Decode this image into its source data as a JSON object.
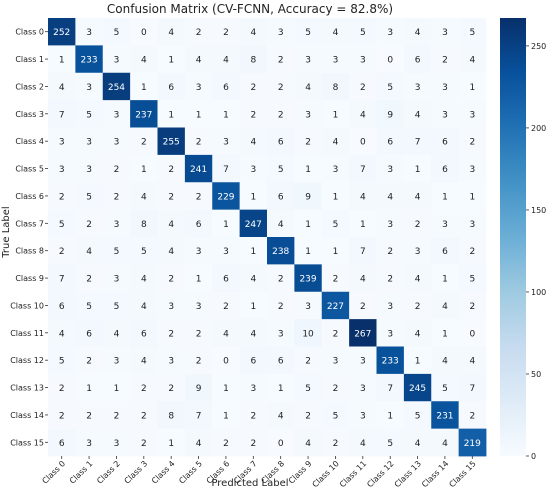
{
  "chart_data": {
    "type": "heatmap",
    "title": "Confusion Matrix (CV-FCNN, Accuracy = 82.8%)",
    "xlabel": "Predicted Label",
    "ylabel": "True Label",
    "x_categories": [
      "Class 0",
      "Class 1",
      "Class 2",
      "Class 3",
      "Class 4",
      "Class 5",
      "Class 6",
      "Class 7",
      "Class 8",
      "Class 9",
      "Class 10",
      "Class 11",
      "Class 12",
      "Class 13",
      "Class 14",
      "Class 15"
    ],
    "y_categories": [
      "Class 0",
      "Class 1",
      "Class 2",
      "Class 3",
      "Class 4",
      "Class 5",
      "Class 6",
      "Class 7",
      "Class 8",
      "Class 9",
      "Class 10",
      "Class 11",
      "Class 12",
      "Class 13",
      "Class 14",
      "Class 15"
    ],
    "values": [
      [
        252,
        3,
        5,
        0,
        4,
        2,
        2,
        4,
        3,
        5,
        4,
        5,
        3,
        4,
        3,
        5
      ],
      [
        1,
        233,
        3,
        4,
        1,
        4,
        4,
        8,
        2,
        3,
        3,
        3,
        0,
        6,
        2,
        4
      ],
      [
        4,
        3,
        254,
        1,
        6,
        3,
        6,
        2,
        2,
        4,
        8,
        2,
        5,
        3,
        3,
        1
      ],
      [
        7,
        5,
        3,
        237,
        1,
        1,
        1,
        2,
        2,
        3,
        1,
        4,
        9,
        4,
        3,
        3
      ],
      [
        3,
        3,
        3,
        2,
        255,
        2,
        3,
        4,
        6,
        2,
        4,
        0,
        6,
        7,
        6,
        2
      ],
      [
        3,
        3,
        2,
        1,
        2,
        241,
        7,
        3,
        5,
        1,
        3,
        7,
        3,
        1,
        6,
        3
      ],
      [
        2,
        5,
        2,
        4,
        2,
        2,
        229,
        1,
        6,
        9,
        1,
        4,
        4,
        4,
        1,
        1
      ],
      [
        5,
        2,
        3,
        8,
        4,
        6,
        1,
        247,
        4,
        1,
        5,
        1,
        3,
        2,
        3,
        3
      ],
      [
        2,
        4,
        5,
        5,
        4,
        3,
        3,
        1,
        238,
        1,
        1,
        7,
        2,
        3,
        6,
        2
      ],
      [
        7,
        2,
        3,
        4,
        2,
        1,
        6,
        4,
        2,
        239,
        2,
        4,
        2,
        4,
        1,
        5
      ],
      [
        6,
        5,
        5,
        4,
        3,
        3,
        2,
        1,
        2,
        3,
        227,
        2,
        3,
        2,
        4,
        2
      ],
      [
        4,
        6,
        4,
        6,
        2,
        2,
        4,
        4,
        3,
        10,
        2,
        267,
        3,
        4,
        1,
        0
      ],
      [
        5,
        2,
        3,
        4,
        3,
        2,
        0,
        6,
        6,
        2,
        3,
        3,
        233,
        1,
        4,
        4
      ],
      [
        2,
        1,
        1,
        2,
        2,
        9,
        1,
        3,
        1,
        5,
        2,
        3,
        7,
        245,
        5,
        7
      ],
      [
        2,
        2,
        2,
        2,
        8,
        7,
        1,
        2,
        4,
        2,
        5,
        3,
        1,
        5,
        231,
        2
      ],
      [
        6,
        3,
        3,
        2,
        1,
        4,
        2,
        2,
        0,
        4,
        2,
        4,
        5,
        4,
        4,
        219
      ]
    ],
    "colorbar": {
      "range": [
        0,
        267
      ],
      "ticks": [
        "0",
        "50",
        "100",
        "150",
        "200",
        "250"
      ]
    },
    "colors": {
      "low": "#f7fbff",
      "high": "#08306b",
      "text_dark": "#222222",
      "text_light": "#ffffff"
    },
    "grid": false,
    "legend": "colorbar-right"
  }
}
